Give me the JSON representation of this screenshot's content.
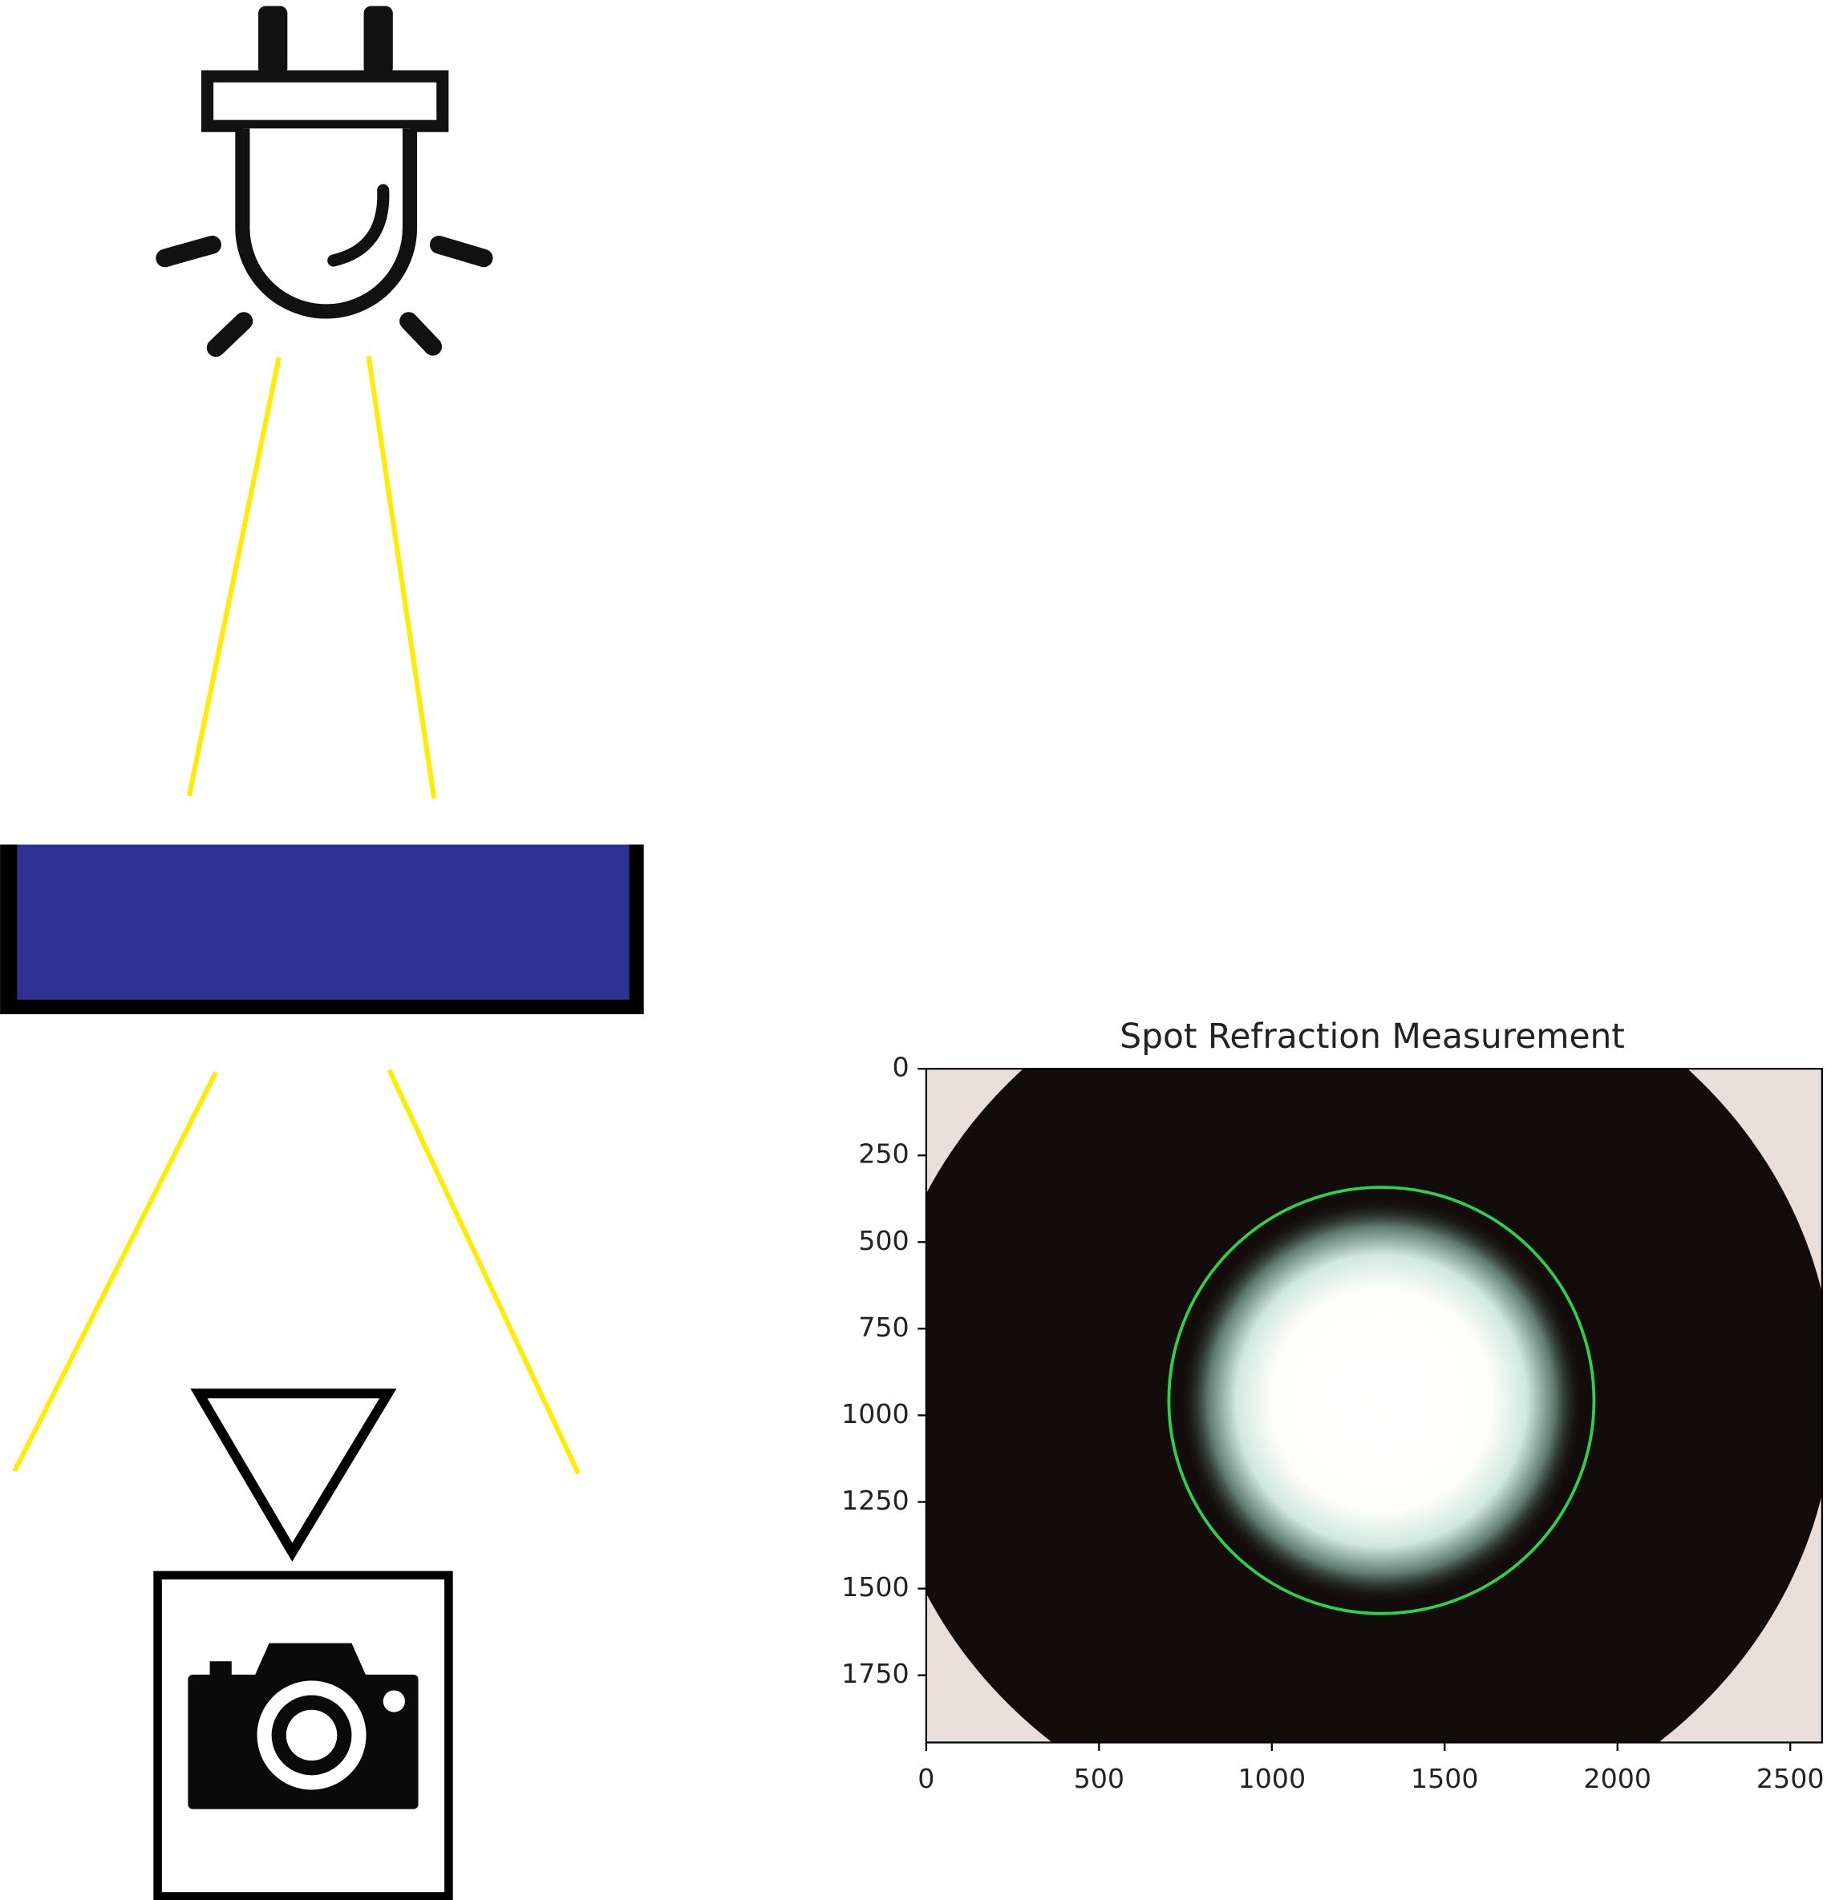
{
  "chart_data": {
    "type": "image",
    "title": "Spot Refraction Measurement",
    "xlim": [
      0,
      2592
    ],
    "ylim": [
      1944,
      0
    ],
    "xticks": [
      0,
      500,
      1000,
      1500,
      2000,
      2500
    ],
    "yticks": [
      0,
      250,
      500,
      750,
      1000,
      1250,
      1500,
      1750
    ],
    "circle": {
      "cx": 1317,
      "cy": 957,
      "r": 615,
      "color": "#2fd14a"
    }
  }
}
